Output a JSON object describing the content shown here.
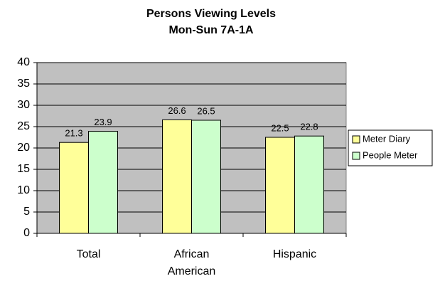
{
  "chart_data": {
    "type": "bar",
    "title": "Persons Viewing Levels",
    "subtitle": "Mon-Sun 7A-1A",
    "categories": [
      "Total",
      "African American",
      "Hispanic"
    ],
    "series": [
      {
        "name": "Meter Diary",
        "color": "#ffff99",
        "values": [
          21.3,
          26.6,
          22.5
        ]
      },
      {
        "name": "People Meter",
        "color": "#ccffcc",
        "values": [
          23.9,
          26.5,
          22.8
        ]
      }
    ],
    "ylim": [
      0,
      40
    ],
    "yticks": [
      0,
      5,
      10,
      15,
      20,
      25,
      30,
      35,
      40
    ],
    "grid": true,
    "legend": "right"
  }
}
